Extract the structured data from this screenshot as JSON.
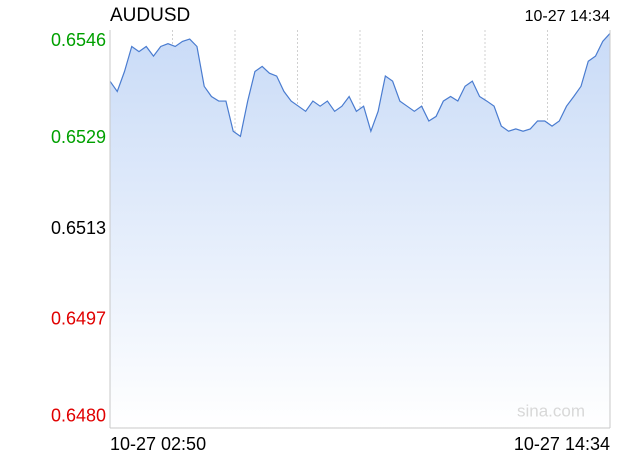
{
  "chart_data": {
    "type": "line",
    "title": "AUDUSD",
    "time": "10-27 14:34",
    "watermark": "sina.com",
    "color": "#4a7cd0",
    "fill": "#c9dbf7",
    "grid": true,
    "ylim": [
      0.6478,
      0.6548
    ],
    "yticks": [
      {
        "value": 0.648,
        "label": "0.6480"
      },
      0.6497,
      0.6513,
      0.6529,
      0.6546
    ],
    "ytick_colors": [
      "#e00000",
      "#e00000",
      "#000000",
      "#00a000",
      "#00a000"
    ],
    "categories": [
      "10-27 02:50",
      null,
      null,
      null,
      null,
      null,
      null,
      null,
      null,
      null,
      null,
      null,
      null,
      null,
      null,
      null,
      null,
      null,
      null,
      null,
      null,
      null,
      null,
      null,
      null,
      null,
      null,
      null,
      null,
      null,
      null,
      null,
      null,
      null,
      null,
      null,
      null,
      null,
      null,
      null,
      null,
      null,
      null,
      null,
      null,
      null,
      null,
      null,
      null,
      null,
      null,
      null,
      null,
      null,
      null,
      null,
      null,
      null,
      null,
      null,
      null,
      null,
      null,
      null,
      null,
      null,
      null,
      null,
      null,
      "10-27 14:34"
    ],
    "values": [
      0.6539,
      0.65372,
      0.65407,
      0.65451,
      0.65442,
      0.65451,
      0.65434,
      0.65451,
      0.65456,
      0.65451,
      0.6546,
      0.65464,
      0.65451,
      0.65381,
      0.65363,
      0.65355,
      0.65355,
      0.65302,
      0.65293,
      0.65355,
      0.65407,
      0.65416,
      0.65404,
      0.65399,
      0.65372,
      0.65355,
      0.65346,
      0.65337,
      0.65355,
      0.65346,
      0.65355,
      0.65337,
      0.65346,
      0.65363,
      0.65337,
      0.65346,
      0.65302,
      0.65337,
      0.65399,
      0.6539,
      0.65355,
      0.65346,
      0.65337,
      0.65346,
      0.6532,
      0.65328,
      0.65355,
      0.65363,
      0.65355,
      0.65381,
      0.6539,
      0.65363,
      0.65355,
      0.65346,
      0.65311,
      0.65302,
      0.65306,
      0.65302,
      0.65306,
      0.6532,
      0.6532,
      0.65311,
      0.6532,
      0.65346,
      0.65363,
      0.65381,
      0.65425,
      0.65434,
      0.6546,
      0.65474
    ]
  }
}
